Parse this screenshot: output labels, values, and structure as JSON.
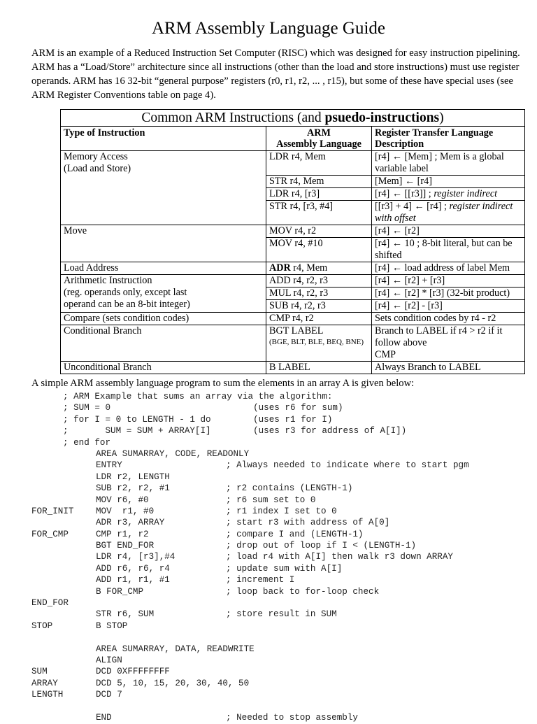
{
  "title": "ARM Assembly Language Guide",
  "intro": "ARM is an example of a Reduced Instruction Set Computer (RISC) which was designed for easy instruction pipelining.  ARM has a “Load/Store” architecture since all instructions (other than the load and store instructions) must use register operands.  ARM has 16 32-bit “general purpose” registers (r0, r1, r2, ... , r15), but some of these have special uses (see ARM Register Conventions table on page 4).",
  "table": {
    "caption_plain": "Common ARM Instructions (and ",
    "caption_bold": "psuedo-instructions",
    "caption_end": ")",
    "headers": {
      "type": "Type of Instruction",
      "asm_line1": "ARM",
      "asm_line2": "Assembly Language",
      "rtl_line1": "Register Transfer Language",
      "rtl_line2": "Description"
    },
    "groups": [
      {
        "type": [
          "Memory Access",
          "(Load and Store)"
        ],
        "rows": [
          {
            "asm": "LDR  r4, Mem",
            "rtl": "[r4] ← [Mem]  ; Mem is a global variable label"
          },
          {
            "asm": "STR  r4, Mem",
            "rtl": "[Mem] ← [r4]"
          },
          {
            "asm": "LDR  r4, [r3]",
            "rtl": "[r4] ← [[r3]]       ; ",
            "rtl_italic": "register indirect"
          },
          {
            "asm": "STR  r4, [r3, #4]",
            "rtl": "[[r3] + 4] ← [r4]  ; ",
            "rtl_italic": "register indirect with offset"
          }
        ]
      },
      {
        "type": [
          "Move"
        ],
        "rows": [
          {
            "asm": "MOV  r4, r2",
            "rtl": "[r4] ← [r2]"
          },
          {
            "asm": "MOV r4, #10",
            "rtl": "[r4] ← 10  ;  8-bit literal, but can be shifted"
          }
        ]
      },
      {
        "type": [
          "Load Address"
        ],
        "rows": [
          {
            "asm_bold": "ADR",
            "asm": " r4, Mem",
            "rtl": "[r4] ← load address of label Mem"
          }
        ]
      },
      {
        "type": [
          "Arithmetic Instruction",
          "(reg. operands only, except last",
          "operand can be an 8-bit integer)"
        ],
        "rows": [
          {
            "asm": "ADD r4, r2, r3",
            "rtl": "[r4] ← [r2] + [r3]"
          },
          {
            "asm": "MUL r4, r2, r3",
            "rtl": "[r4] ← [r2] * [r3]    (32-bit product)"
          },
          {
            "asm": "SUB r4, r2, r3",
            "rtl": "[r4] ← [r2] - [r3]"
          }
        ]
      },
      {
        "type": [
          "Compare (sets condition codes)"
        ],
        "rows": [
          {
            "asm": "CMP r4, r2",
            "rtl": "Sets condition codes by r4 - r2"
          }
        ]
      },
      {
        "type": [
          "Conditional Branch"
        ],
        "rows": [
          {
            "asm": "BGT  LABEL",
            "asm_small": "(BGE, BLT, BLE, BEQ, BNE)",
            "rtl": "Branch to LABEL if r4 > r2 if it follow above",
            "rtl_line2": "CMP"
          }
        ]
      },
      {
        "type": [
          "Unconditional Branch"
        ],
        "rows": [
          {
            "asm": "B  LABEL",
            "rtl": "Always Branch to LABEL"
          }
        ]
      }
    ]
  },
  "program_intro": "A simple ARM assembly language program to sum the elements in an array A is given below:",
  "program": [
    {
      "c": "; ARM Example that sums an array via the algorithm:"
    },
    {
      "c": "; SUM = 0                           (uses r6 for sum)"
    },
    {
      "c": "; for I = 0 to LENGTH - 1 do        (uses r1 for I)"
    },
    {
      "c": ";       SUM = SUM + ARRAY[I]        (uses r3 for address of A[I])"
    },
    {
      "c": "; end for"
    },
    {
      "i": "AREA SUMARRAY, CODE, READONLY"
    },
    {
      "i": "ENTRY",
      "m": "; Always needed to indicate where to start pgm"
    },
    {
      "i": "LDR r2, LENGTH"
    },
    {
      "i": "SUB r2, r2, #1",
      "m": "; r2 contains (LENGTH-1)"
    },
    {
      "i": "MOV r6, #0",
      "m": "; r6 sum set to 0"
    },
    {
      "l": "FOR_INIT",
      "i": "MOV  r1, #0",
      "m": "; r1 index I set to 0"
    },
    {
      "i": "ADR r3, ARRAY",
      "m": "; start r3 with address of A[0]"
    },
    {
      "l": "FOR_CMP",
      "i": "CMP r1, r2",
      "m": "; compare I and (LENGTH-1)"
    },
    {
      "i": "BGT END_FOR",
      "m": "; drop out of loop if I < (LENGTH-1)"
    },
    {
      "i": "LDR r4, [r3],#4",
      "m": "; load r4 with A[I] then walk r3 down ARRAY"
    },
    {
      "i": "ADD r6, r6, r4",
      "m": "; update sum with A[I]"
    },
    {
      "i": "ADD r1, r1, #1",
      "m": "; increment I"
    },
    {
      "i": "B FOR_CMP",
      "m": "; loop back to for-loop check"
    },
    {
      "l": "END_FOR"
    },
    {
      "i": "STR r6, SUM",
      "m": "; store result in SUM"
    },
    {
      "l": "STOP",
      "i": "B STOP"
    },
    {},
    {
      "i": "AREA SUMARRAY, DATA, READWRITE"
    },
    {
      "i": "ALIGN"
    },
    {
      "l": "SUM",
      "i": "DCD 0XFFFFFFFF"
    },
    {
      "l": "ARRAY",
      "i": "DCD 5, 10, 15, 20, 30, 40, 50"
    },
    {
      "l": "LENGTH",
      "i": "DCD 7"
    },
    {},
    {
      "i": "END",
      "m": "; Needed to stop assembly"
    }
  ]
}
